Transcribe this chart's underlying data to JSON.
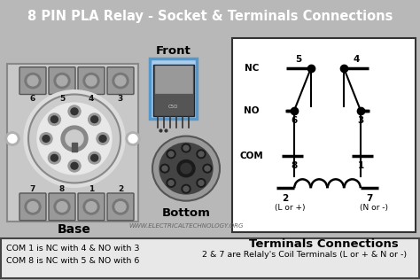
{
  "title": "8 PIN PLA Relay - Socket & Terminals Connections",
  "title_fontsize": 10.5,
  "title_bg": "#111111",
  "title_color": "#ffffff",
  "bg_color": "#b8b8b8",
  "footer_text": "WWW.ELECTRICALTECHNOLOGY.ORG",
  "label_base": "Base",
  "label_bottom": "Bottom",
  "label_front": "Front",
  "label_terminals": "Terminals Connections",
  "note_left": "COM 1 is NC with 4 & NO with 3\nCOM 8 is NC with 5 & NO with 6",
  "note_right": "2 & 7 are Relaly's Coil Terminals (L or + & N or -)",
  "nc_label": "NC",
  "no_label": "NO",
  "com_label": "COM",
  "pin5": "5",
  "pin4": "4",
  "pin6": "6",
  "pin3": "3",
  "pin8": "8",
  "pin1": "1",
  "pin2": "2",
  "pin7": "7",
  "lor_label": "(L or +)",
  "nor_label": "(N or -)",
  "socket_bg": "#cccccc",
  "socket_dark": "#888888",
  "socket_darker": "#555555",
  "note_bg": "#e8e8e8"
}
